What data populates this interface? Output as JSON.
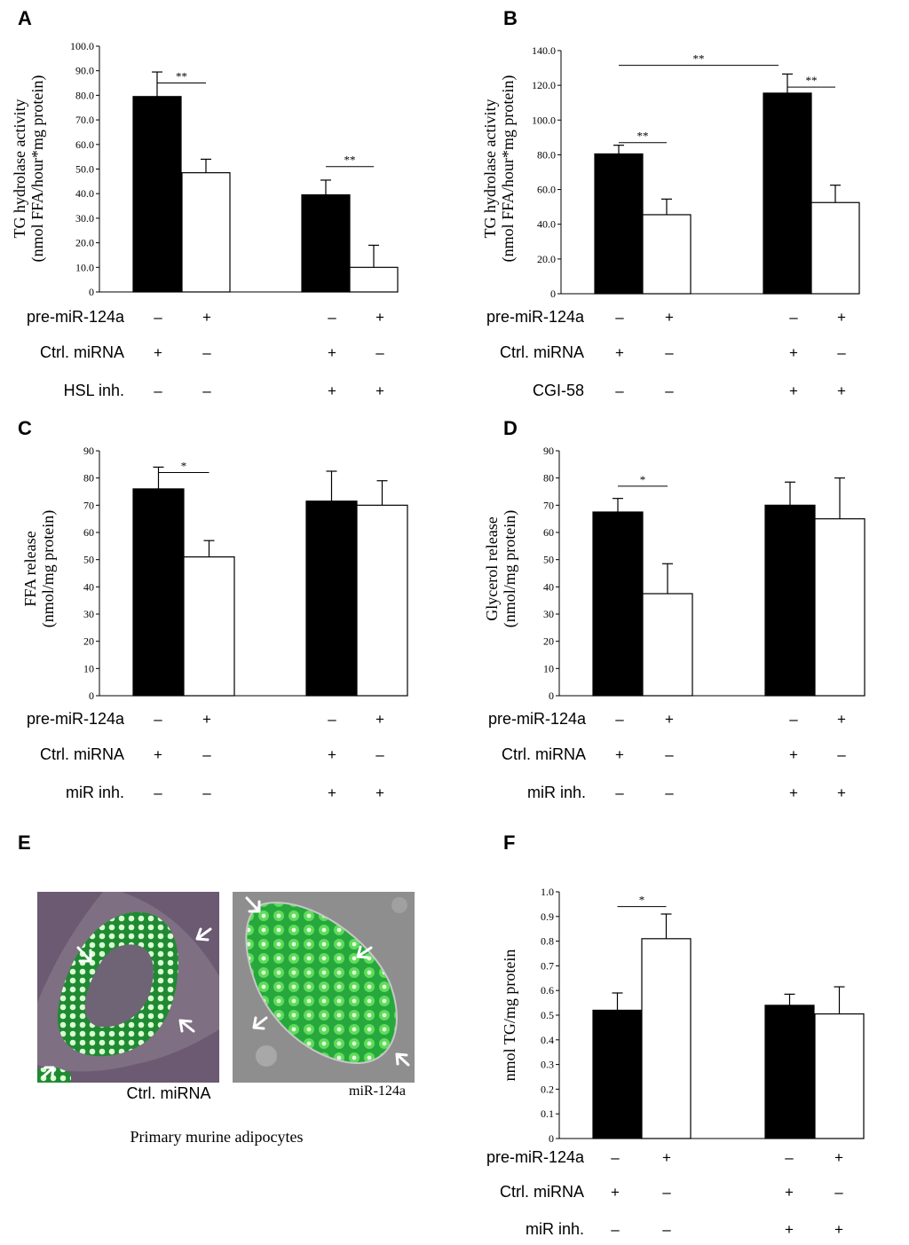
{
  "colors": {
    "control_bar": "#000000",
    "treated_bar": "#ffffff",
    "cell_green": "#2fb24a",
    "background_purple": "#6b5a72",
    "background_gray": "#8c8c8c"
  },
  "chart_data": [
    {
      "panel": "A",
      "type": "bar",
      "ylabel_lines": [
        "TG hydrolase activity",
        "(nmol FFA/hour*mg protein)"
      ],
      "yticks": [
        "0",
        "10.0",
        "20.0",
        "30.0",
        "40.0",
        "50.0",
        "60.0",
        "70.0",
        "80.0",
        "90.0",
        "100.0"
      ],
      "ylim": [
        0,
        100
      ],
      "values": [
        79.5,
        48.5,
        39.5,
        10
      ],
      "errors": [
        10,
        5.5,
        6,
        9
      ],
      "significance": [
        {
          "from": 0,
          "to": 1,
          "label": "**",
          "level": 85
        },
        {
          "from": 2,
          "to": 3,
          "label": "**",
          "level": 51
        }
      ],
      "conditions": [
        {
          "label": "pre-miR-124a",
          "signs": [
            "–",
            "+",
            "–",
            "+"
          ]
        },
        {
          "label": "Ctrl. miRNA",
          "signs": [
            "+",
            "–",
            "+",
            "–"
          ]
        },
        {
          "label": "HSL inh.",
          "signs": [
            "–",
            "–",
            "+",
            "+"
          ]
        }
      ]
    },
    {
      "panel": "B",
      "type": "bar",
      "ylabel_lines": [
        "TG hydrolase activity",
        "(nmol FFA/hour*mg protein)"
      ],
      "yticks": [
        "0",
        "20.0",
        "40.0",
        "60.0",
        "80.0",
        "100.0",
        "120.0",
        "140.0"
      ],
      "ylim": [
        0,
        140
      ],
      "values": [
        80.5,
        45.5,
        115.5,
        52.5
      ],
      "errors": [
        5,
        9,
        11,
        10
      ],
      "significance": [
        {
          "from": 0,
          "to": 1,
          "label": "**",
          "level": 87
        },
        {
          "from": 2,
          "to": 3,
          "label": "**",
          "level": 119
        },
        {
          "from": 0,
          "to": 2,
          "label": "**",
          "level": 131.5
        }
      ],
      "conditions": [
        {
          "label": "pre-miR-124a",
          "signs": [
            "–",
            "+",
            "–",
            "+"
          ]
        },
        {
          "label": "Ctrl. miRNA",
          "signs": [
            "+",
            "–",
            "+",
            "–"
          ]
        },
        {
          "label": "CGI-58",
          "signs": [
            "–",
            "–",
            "+",
            "+"
          ]
        }
      ]
    },
    {
      "panel": "C",
      "type": "bar",
      "ylabel_lines": [
        "FFA release",
        "(nmol/mg protein)"
      ],
      "yticks": [
        "0",
        "10",
        "20",
        "30",
        "40",
        "50",
        "60",
        "70",
        "80",
        "90"
      ],
      "ylim": [
        0,
        90
      ],
      "values": [
        76,
        51,
        71.5,
        70
      ],
      "errors": [
        8,
        6,
        11,
        9
      ],
      "significance": [
        {
          "from": 0,
          "to": 1,
          "label": "*",
          "level": 82
        }
      ],
      "conditions": [
        {
          "label": "pre-miR-124a",
          "signs": [
            "–",
            "+",
            "–",
            "+"
          ]
        },
        {
          "label": "Ctrl. miRNA",
          "signs": [
            "+",
            "–",
            "+",
            "–"
          ]
        },
        {
          "label": "miR inh.",
          "signs": [
            "–",
            "–",
            "+",
            "+"
          ]
        }
      ]
    },
    {
      "panel": "D",
      "type": "bar",
      "ylabel_lines": [
        "Glycerol release",
        "(nmol/mg protein)"
      ],
      "yticks": [
        "0",
        "10",
        "20",
        "30",
        "40",
        "50",
        "60",
        "70",
        "80",
        "90"
      ],
      "ylim": [
        0,
        90
      ],
      "values": [
        67.5,
        37.5,
        70,
        65
      ],
      "errors": [
        5,
        11,
        8.5,
        15
      ],
      "significance": [
        {
          "from": 0,
          "to": 1,
          "label": "*",
          "level": 77
        }
      ],
      "conditions": [
        {
          "label": "pre-miR-124a",
          "signs": [
            "–",
            "+",
            "–",
            "+"
          ]
        },
        {
          "label": "Ctrl. miRNA",
          "signs": [
            "+",
            "–",
            "+",
            "–"
          ]
        },
        {
          "label": "miR inh.",
          "signs": [
            "–",
            "–",
            "+",
            "+"
          ]
        }
      ]
    },
    {
      "panel": "F",
      "type": "bar",
      "ylabel_lines": [
        "nmol TG/mg protein"
      ],
      "yticks": [
        "0",
        "0.1",
        "0.2",
        "0.3",
        "0.4",
        "0.5",
        "0.6",
        "0.7",
        "0.8",
        "0.9",
        "1.0"
      ],
      "ylim": [
        0,
        1.0
      ],
      "values": [
        0.52,
        0.81,
        0.54,
        0.505
      ],
      "errors": [
        0.07,
        0.1,
        0.045,
        0.11
      ],
      "significance": [
        {
          "from": 0,
          "to": 1,
          "label": "*",
          "level": 0.94
        }
      ],
      "conditions": [
        {
          "label": "pre-miR-124a",
          "signs": [
            "–",
            "+",
            "–",
            "+"
          ]
        },
        {
          "label": "Ctrl. miRNA",
          "signs": [
            "+",
            "–",
            "+",
            "–"
          ]
        },
        {
          "label": "miR inh.",
          "signs": [
            "–",
            "–",
            "+",
            "+"
          ]
        }
      ]
    }
  ],
  "panel_e": {
    "letter": "E",
    "left_caption": "Ctrl. miRNA",
    "right_caption": "miR-124a",
    "bottom_caption": "Primary murine adipocytes"
  }
}
